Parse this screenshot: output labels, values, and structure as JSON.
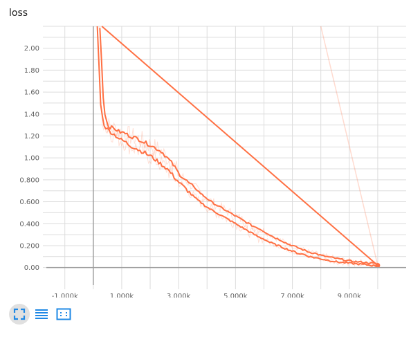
{
  "chart_title": "loss",
  "icons": {
    "fullscreen": "fullscreen-icon",
    "log_scale": "list-icon",
    "fit_domain": "fit-domain-icon"
  },
  "colors": {
    "series": "#ff7043",
    "axis": "#9e9e9e",
    "grid": "#dcdcdc",
    "accent": "#1e88e5"
  },
  "chart_data": {
    "type": "line",
    "title": "loss",
    "xlabel": "",
    "ylabel": "",
    "xlim": [
      -1650,
      11000
    ],
    "ylim": [
      -0.16,
      2.2
    ],
    "x_ticks": [
      -1000,
      1000,
      3000,
      5000,
      7000,
      9000
    ],
    "x_tick_labels": [
      "-1.000k",
      "1.000k",
      "3.000k",
      "5.000k",
      "7.000k",
      "9.000k"
    ],
    "y_ticks": [
      0,
      0.2,
      0.4,
      0.6,
      0.8,
      1.0,
      1.2,
      1.4,
      1.6,
      1.8,
      2.0
    ],
    "y_tick_labels": [
      "0.00",
      "0.200",
      "0.400",
      "0.600",
      "0.800",
      "1.00",
      "1.20",
      "1.40",
      "1.60",
      "1.80",
      "2.00"
    ],
    "grid": true,
    "series": [
      {
        "role": "smoothed",
        "x": [
          230,
          270,
          300,
          330,
          360,
          400,
          450,
          500,
          600,
          700,
          800,
          900,
          1000,
          1100,
          1200,
          1300,
          1400,
          1500,
          1600,
          1700,
          1800,
          1900,
          2000,
          2100,
          2200,
          2300,
          2400,
          2500,
          2600,
          2700,
          2800,
          2900,
          3000,
          3200,
          3400,
          3600,
          3800,
          4000,
          4200,
          4400,
          4600,
          4800,
          5000,
          5200,
          5400,
          5600,
          5800,
          6000,
          6200,
          6400,
          6600,
          6800,
          7000,
          7200,
          7400,
          7600,
          7800,
          8000,
          8200,
          8400,
          8600,
          8800,
          9000,
          9200,
          9400,
          9600,
          9800,
          10000
        ],
        "y": [
          2.2,
          2.05,
          1.82,
          1.62,
          1.52,
          1.42,
          1.36,
          1.3,
          1.28,
          1.27,
          1.26,
          1.24,
          1.23,
          1.23,
          1.21,
          1.2,
          1.19,
          1.18,
          1.17,
          1.16,
          1.14,
          1.13,
          1.12,
          1.1,
          1.09,
          1.07,
          1.06,
          1.03,
          1.0,
          0.97,
          0.94,
          0.9,
          0.86,
          0.81,
          0.76,
          0.72,
          0.67,
          0.63,
          0.59,
          0.56,
          0.53,
          0.5,
          0.47,
          0.44,
          0.41,
          0.38,
          0.36,
          0.33,
          0.3,
          0.27,
          0.25,
          0.22,
          0.2,
          0.18,
          0.16,
          0.14,
          0.13,
          0.11,
          0.1,
          0.09,
          0.08,
          0.07,
          0.06,
          0.055,
          0.05,
          0.045,
          0.04,
          0.03
        ]
      },
      {
        "role": "smoothed",
        "x": [
          140,
          170,
          200,
          230,
          260,
          300,
          350,
          400,
          500,
          600,
          700,
          800,
          900,
          1000,
          1100,
          1200,
          1300,
          1400,
          1500,
          1600,
          1700,
          1800,
          1900,
          2000,
          2100,
          2200,
          2300,
          2400,
          2500,
          2600,
          2700,
          2800,
          2900,
          3000,
          3200,
          3400,
          3600,
          3800,
          4000,
          4200,
          4400,
          4600,
          4800,
          5000,
          5200,
          5400,
          5600,
          5800,
          6000,
          6200,
          6400,
          6600,
          6800,
          7000,
          7200,
          7400,
          7600,
          7800,
          8000,
          8200,
          8400,
          8600,
          8800,
          9000,
          9200,
          9400,
          9600,
          9800,
          10000
        ],
        "y": [
          2.2,
          2.08,
          1.85,
          1.65,
          1.5,
          1.4,
          1.33,
          1.29,
          1.26,
          1.24,
          1.22,
          1.2,
          1.18,
          1.16,
          1.15,
          1.13,
          1.11,
          1.1,
          1.09,
          1.07,
          1.06,
          1.05,
          1.03,
          1.02,
          1.0,
          0.98,
          0.96,
          0.94,
          0.92,
          0.9,
          0.87,
          0.84,
          0.81,
          0.78,
          0.73,
          0.68,
          0.63,
          0.59,
          0.55,
          0.52,
          0.49,
          0.46,
          0.43,
          0.4,
          0.37,
          0.34,
          0.31,
          0.28,
          0.26,
          0.23,
          0.21,
          0.19,
          0.17,
          0.15,
          0.13,
          0.12,
          0.1,
          0.09,
          0.08,
          0.07,
          0.06,
          0.05,
          0.045,
          0.04,
          0.035,
          0.03,
          0.025,
          0.02,
          0.015
        ]
      },
      {
        "role": "connector",
        "x": [
          300,
          10000
        ],
        "y": [
          2.2,
          0.02
        ]
      },
      {
        "role": "raw-connector",
        "x": [
          8000,
          10000
        ],
        "y": [
          2.2,
          0.02
        ]
      }
    ],
    "marker": {
      "x": 10000,
      "y": 0.02
    }
  }
}
